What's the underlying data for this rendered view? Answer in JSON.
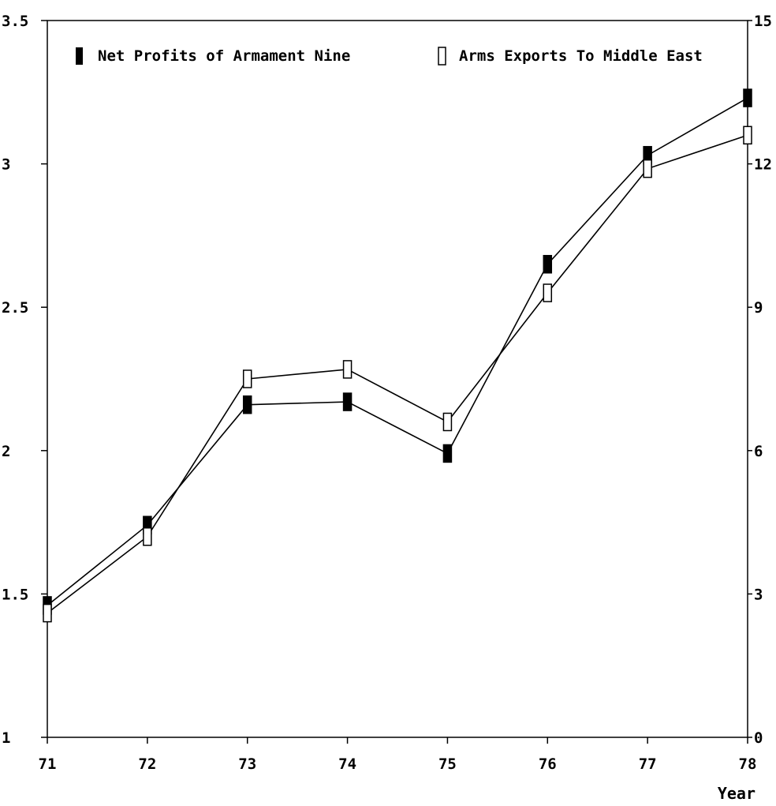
{
  "chart_data": {
    "type": "line",
    "x": [
      "71",
      "72",
      "73",
      "74",
      "75",
      "76",
      "77",
      "78"
    ],
    "xlabel": "Year",
    "left_axis": {
      "ylim": [
        1,
        3.5
      ],
      "ticks": [
        "1",
        "1.5",
        "2",
        "2.5",
        "3",
        "3.5"
      ],
      "tick_values": [
        1,
        1.5,
        2,
        2.5,
        3,
        3.5
      ]
    },
    "right_axis": {
      "ylim": [
        0,
        15
      ],
      "ticks": [
        "0",
        "3",
        "6",
        "9",
        "12",
        "15"
      ],
      "tick_values": [
        0,
        3,
        6,
        9,
        12,
        15
      ]
    },
    "series": [
      {
        "name": "Net Profits of Armament Nine",
        "axis": "left",
        "marker": "filled-square",
        "values": [
          1.46,
          1.74,
          2.16,
          2.17,
          1.99,
          2.65,
          3.03,
          3.23
        ]
      },
      {
        "name": "Arms Exports To Middle East",
        "axis": "right",
        "marker": "open-square",
        "values": [
          2.6,
          4.2,
          7.5,
          7.7,
          6.6,
          9.3,
          11.9,
          12.6
        ]
      }
    ],
    "grid": false,
    "legend_position": "top"
  }
}
